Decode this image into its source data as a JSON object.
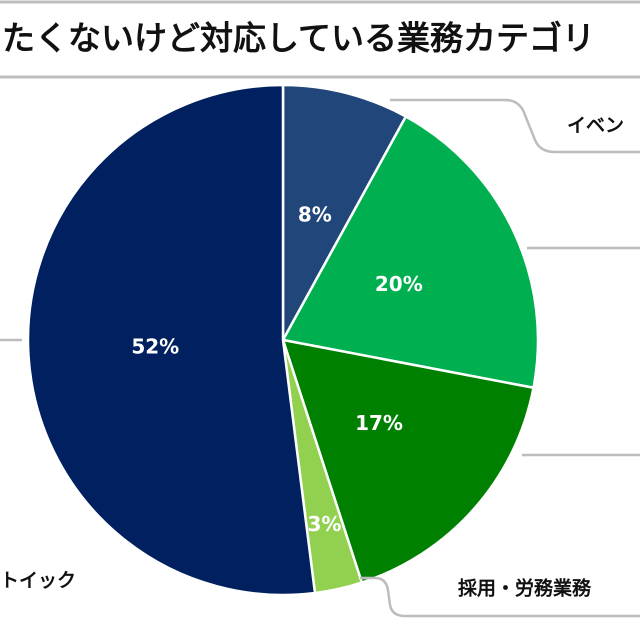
{
  "chart_data": {
    "type": "pie",
    "title": "たくないけど対応している業務カテゴリ",
    "categories": [
      "イベン",
      null,
      null,
      "採用・労務業務",
      "トイック"
    ],
    "values": [
      8,
      20,
      17,
      3,
      52
    ],
    "value_labels": [
      "8%",
      "20%",
      "17%",
      "3%",
      "52%"
    ],
    "colors": [
      "#21467a",
      "#00b050",
      "#008000",
      "#92d050",
      "#002060"
    ]
  }
}
